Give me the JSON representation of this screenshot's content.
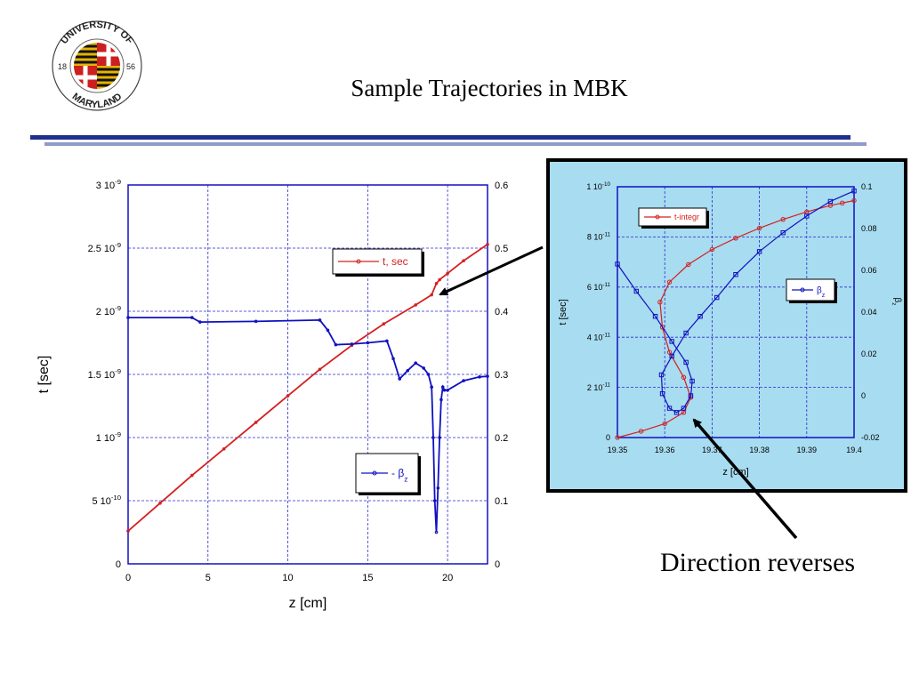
{
  "slide": {
    "title": "Sample Trajectories in MBK",
    "caption": "Direction reverses",
    "logo": {
      "top_text": "UNIVERSITY OF",
      "bottom_text": "MARYLAND",
      "year_left": "18",
      "year_right": "56"
    }
  },
  "colors": {
    "red": "#d42020",
    "blue": "#1010c0",
    "grid": "#2a2acf",
    "inset_bg": "#a8dcf0",
    "rule_dark": "#1f2f8f",
    "rule_light": "#8f9bc7"
  },
  "chart_data": [
    {
      "type": "line",
      "xlabel": "z [cm]",
      "ylabel": "t [sec]",
      "xlim": [
        0,
        22.5
      ],
      "ylim": [
        0,
        3e-09
      ],
      "y2lim": [
        0,
        0.6
      ],
      "x_ticks": [
        "0",
        "5",
        "10",
        "15",
        "20"
      ],
      "x_tick_values": [
        0,
        5,
        10,
        15,
        20
      ],
      "y_ticks_left": [
        {
          "mant": "0",
          "exp": ""
        },
        {
          "mant": "5 10",
          "exp": "-10"
        },
        {
          "mant": "1 10",
          "exp": "-9"
        },
        {
          "mant": "1.5 10",
          "exp": "-9"
        },
        {
          "mant": "2 10",
          "exp": "-9"
        },
        {
          "mant": "2.5 10",
          "exp": "-9"
        },
        {
          "mant": "3 10",
          "exp": "-9"
        }
      ],
      "y_ticks_right": [
        "0",
        "0.1",
        "0.2",
        "0.3",
        "0.4",
        "0.5",
        "0.6"
      ],
      "grid": true,
      "legend": [
        {
          "label": "t, sec",
          "position": "top-right"
        },
        {
          "label_prefix": "- β",
          "label_sub": "z",
          "position": "bottom-right"
        }
      ],
      "series": [
        {
          "name": "t, sec",
          "axis": "left",
          "x": [
            0,
            2,
            4,
            6,
            8,
            10,
            12,
            14,
            16,
            18,
            19,
            19.3,
            19.5,
            20,
            21,
            22.5
          ],
          "y": [
            2.6e-10,
            4.8e-10,
            7e-10,
            9.1e-10,
            1.12e-09,
            1.33e-09,
            1.54e-09,
            1.73e-09,
            1.9e-09,
            2.05e-09,
            2.13e-09,
            2.22e-09,
            2.25e-09,
            2.3e-09,
            2.4e-09,
            2.53e-09
          ]
        },
        {
          "name": "β z",
          "axis": "right",
          "x": [
            0,
            4,
            4.5,
            8,
            12,
            12.5,
            13,
            14,
            15,
            16.2,
            16.6,
            17,
            17.5,
            18,
            18.5,
            18.8,
            19.0,
            19.1,
            19.2,
            19.3,
            19.4,
            19.5,
            19.6,
            19.7,
            19.8,
            20,
            21,
            22,
            22.5
          ],
          "y": [
            0.39,
            0.39,
            0.383,
            0.384,
            0.386,
            0.37,
            0.347,
            0.348,
            0.35,
            0.353,
            0.325,
            0.293,
            0.306,
            0.318,
            0.31,
            0.3,
            0.28,
            0.2,
            0.1,
            0.05,
            0.12,
            0.2,
            0.26,
            0.28,
            0.275,
            0.275,
            0.29,
            0.296,
            0.297
          ]
        }
      ]
    },
    {
      "type": "line",
      "xlabel": "z [cm]",
      "ylabel": "t [sec]",
      "y2label": "β z",
      "xlim": [
        19.35,
        19.4
      ],
      "ylim": [
        0,
        1e-10
      ],
      "y2lim": [
        -0.02,
        0.1
      ],
      "x_ticks": [
        "19.35",
        "19.36",
        "19.37",
        "19.38",
        "19.39",
        "19.4"
      ],
      "x_tick_values": [
        19.35,
        19.36,
        19.37,
        19.38,
        19.39,
        19.4
      ],
      "y_ticks_left": [
        {
          "mant": "0",
          "exp": ""
        },
        {
          "mant": "2 10",
          "exp": "-11"
        },
        {
          "mant": "4 10",
          "exp": "-11"
        },
        {
          "mant": "6 10",
          "exp": "-11"
        },
        {
          "mant": "8 10",
          "exp": "-11"
        },
        {
          "mant": "1 10",
          "exp": "-10"
        }
      ],
      "y_ticks_right": [
        "-0.02",
        "0",
        "0.02",
        "0.04",
        "0.06",
        "0.08",
        "0.1"
      ],
      "grid": true,
      "legend": [
        {
          "label": "t-integr",
          "position": "top-left"
        },
        {
          "label_prefix": "β",
          "label_sub": "z",
          "position": "right"
        }
      ],
      "series": [
        {
          "name": "t-integr",
          "axis": "left",
          "x": [
            19.35,
            19.355,
            19.36,
            19.364,
            19.3655,
            19.364,
            19.361,
            19.3595,
            19.359,
            19.361,
            19.365,
            19.37,
            19.375,
            19.38,
            19.385,
            19.39,
            19.395,
            19.3975,
            19.4
          ],
          "y": [
            0,
            2.5e-12,
            5.5e-12,
            1e-11,
            1.6e-11,
            2.4e-11,
            3.4e-11,
            4.4e-11,
            5.4e-11,
            6.2e-11,
            6.9e-11,
            7.5e-11,
            7.95e-11,
            8.35e-11,
            8.7e-11,
            9e-11,
            9.25e-11,
            9.35e-11,
            9.45e-11
          ]
        },
        {
          "name": "β z",
          "axis": "right",
          "x": [
            19.35,
            19.354,
            19.358,
            19.3615,
            19.3645,
            19.3658,
            19.3655,
            19.364,
            19.3625,
            19.361,
            19.3595,
            19.3593,
            19.3615,
            19.3645,
            19.3675,
            19.371,
            19.375,
            19.38,
            19.385,
            19.39,
            19.395,
            19.4
          ],
          "y": [
            0.063,
            0.05,
            0.038,
            0.026,
            0.016,
            0.007,
            0.0,
            -0.006,
            -0.008,
            -0.006,
            0.001,
            0.01,
            0.019,
            0.03,
            0.038,
            0.047,
            0.058,
            0.069,
            0.078,
            0.086,
            0.093,
            0.098
          ]
        }
      ]
    }
  ]
}
